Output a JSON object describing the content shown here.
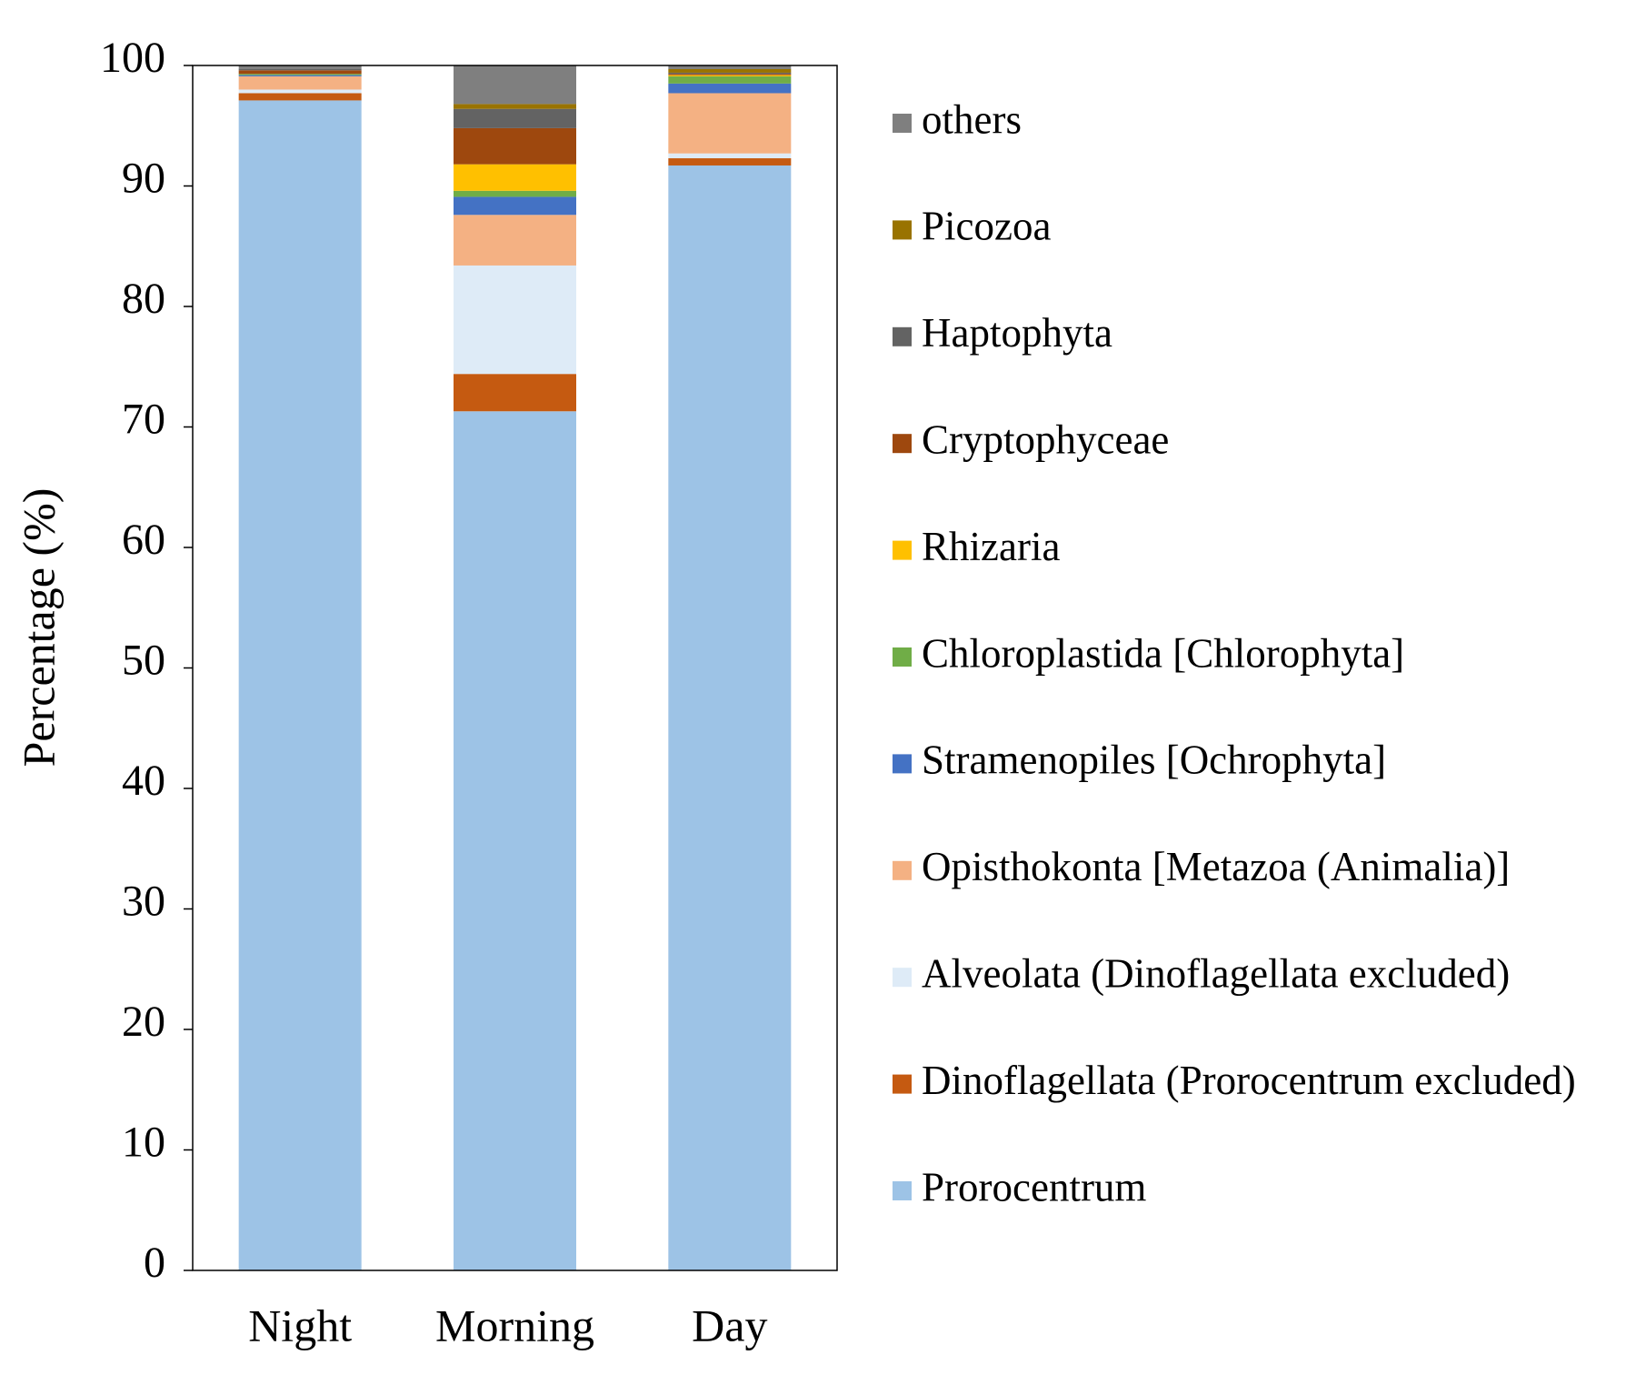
{
  "chart_data": {
    "type": "stacked_bar",
    "y_label": "Percentage (%)",
    "categories": [
      "Night",
      "Morning",
      "Day"
    ],
    "ylim": [
      0,
      100
    ],
    "yticks": [
      0,
      10,
      20,
      30,
      40,
      50,
      60,
      70,
      80,
      90,
      100
    ],
    "series": [
      {
        "name": "Prorocentrum",
        "color": "#9dc3e6",
        "values": [
          97.1,
          71.3,
          91.7
        ]
      },
      {
        "name": "Dinoflagellata (Prorocentrum excluded)",
        "color": "#c55a11",
        "values": [
          0.6,
          3.1,
          0.6
        ]
      },
      {
        "name": "Alveolata (Dinoflagellata excluded)",
        "color": "#deebf7",
        "values": [
          0.3,
          9.0,
          0.4
        ]
      },
      {
        "name": "Opisthokonta [Metazoa (Animalia)]",
        "color": "#f4b183",
        "values": [
          1.1,
          4.2,
          5.0
        ]
      },
      {
        "name": "Stramenopiles [Ochrophyta]",
        "color": "#4472c4",
        "values": [
          0.1,
          1.5,
          0.8
        ]
      },
      {
        "name": "Chloroplastida [Chlorophyta]",
        "color": "#70ad47",
        "values": [
          0.1,
          0.5,
          0.6
        ]
      },
      {
        "name": "Rhizaria",
        "color": "#ffc000",
        "values": [
          0,
          2.2,
          0.1
        ]
      },
      {
        "name": "Cryptophyceae",
        "color": "#9e480e",
        "values": [
          0.3,
          3.0,
          0.1
        ]
      },
      {
        "name": "Haptophyta",
        "color": "#636363",
        "values": [
          0.1,
          1.6,
          0.1
        ]
      },
      {
        "name": "Picozoa",
        "color": "#997300",
        "values": [
          0,
          0.4,
          0.3
        ]
      },
      {
        "name": "others",
        "color": "#7f7f7f",
        "values": [
          0.3,
          3.2,
          0.3
        ]
      }
    ]
  }
}
